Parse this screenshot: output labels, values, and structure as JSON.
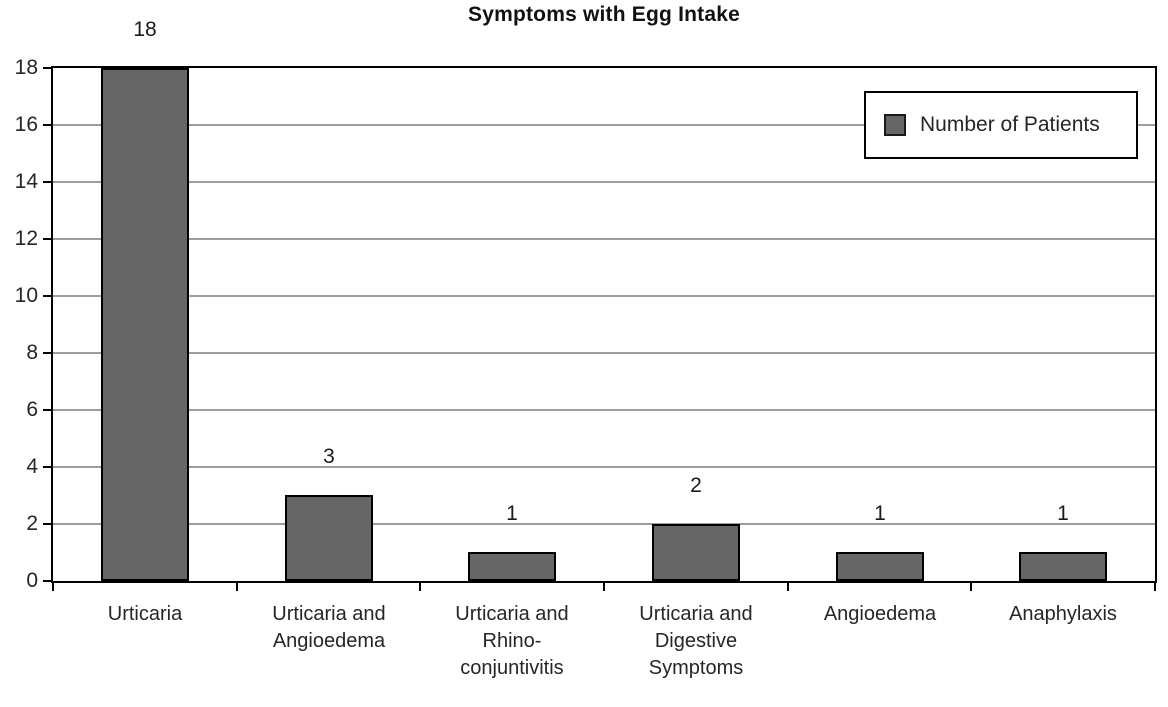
{
  "title": "Symptoms with Egg Intake",
  "legend": {
    "label": "Number of Patients"
  },
  "colors": {
    "bar_fill": "#666666",
    "bar_border": "#000000",
    "gridline": "#9e9e9e",
    "plot_border": "#000000",
    "text": "#262626"
  },
  "chart_data": {
    "type": "bar",
    "title": "Symptoms with Egg Intake",
    "categories": [
      "Urticaria",
      "Urticaria and\nAngioedema",
      "Urticaria and\nRhino-\nconjuntivitis",
      "Urticaria and\nDigestive\nSymptoms",
      "Angioedema",
      "Anaphylaxis"
    ],
    "series": [
      {
        "name": "Number of Patients",
        "values": [
          18,
          3,
          1,
          2,
          1,
          1
        ]
      }
    ],
    "data_labels": [
      "18",
      "3",
      "1",
      "2",
      "1",
      "1"
    ],
    "xlabel": "",
    "ylabel": "",
    "ylim": [
      0,
      18
    ],
    "ytick_step": 2,
    "yticks": [
      0,
      2,
      4,
      6,
      8,
      10,
      12,
      14,
      16,
      18
    ],
    "grid": true,
    "legend_position": "top-right",
    "bar_color": "#666666",
    "bar_border_color": "#000000",
    "gridline_color": "#9e9e9e"
  }
}
